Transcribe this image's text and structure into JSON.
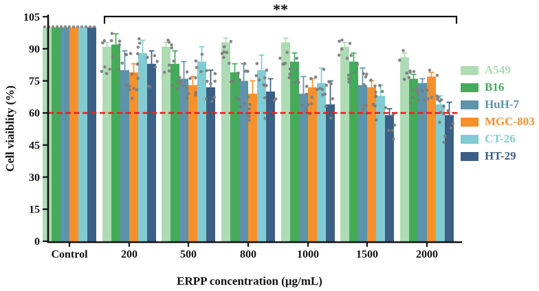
{
  "figure": {
    "background": "#ffffff",
    "axis_color": "#111111"
  },
  "chart_data": {
    "type": "bar",
    "title": "",
    "ylabel": "Cell viaiblity (%)",
    "xlabel": "ERPP concentration (μg/mL)",
    "ylim": [
      0,
      105
    ],
    "y_ticks": [
      0,
      15,
      30,
      45,
      60,
      75,
      90,
      105
    ],
    "categories": [
      "Control",
      "200",
      "500",
      "800",
      "1000",
      "1500",
      "2000"
    ],
    "grid": false,
    "legend_position": "right",
    "scatter_color": "#7d7d7d",
    "series": [
      {
        "name": "A549",
        "color": "#aedbb3",
        "values": [
          100,
          91,
          91,
          93,
          93,
          91,
          86
        ],
        "errors_up": [
          0.5,
          2,
          2,
          2,
          2,
          2,
          2
        ]
      },
      {
        "name": "B16",
        "color": "#45ab5b",
        "values": [
          100,
          92,
          83,
          79,
          84,
          84,
          76
        ],
        "errors_up": [
          0.5,
          5,
          6,
          4,
          4,
          4,
          2
        ]
      },
      {
        "name": "HuH-7",
        "color": "#5e93aa",
        "values": [
          100,
          80,
          76,
          75,
          69,
          73,
          74
        ],
        "errors_up": [
          0.5,
          9,
          8,
          8,
          8,
          8,
          2
        ]
      },
      {
        "name": "MGC-803",
        "color": "#f6902d",
        "values": [
          100,
          79,
          73,
          69,
          72,
          72,
          77
        ],
        "errors_up": [
          0.5,
          4,
          4,
          6,
          4,
          3,
          2
        ]
      },
      {
        "name": "CT-26",
        "color": "#82cbd2",
        "values": [
          100,
          88,
          84,
          80,
          74,
          68,
          64
        ],
        "errors_up": [
          0.5,
          6,
          7,
          7,
          7,
          5,
          4
        ]
      },
      {
        "name": "HT-29",
        "color": "#3c5f86",
        "values": [
          100,
          83,
          72,
          70,
          64,
          59,
          59
        ],
        "errors_up": [
          0.5,
          6,
          8,
          6,
          11,
          3,
          6
        ]
      }
    ],
    "reference_line": {
      "value": 60,
      "color": "#ec2024",
      "style": "dashed"
    },
    "annotation": {
      "label": "**",
      "from_category": "200",
      "to_category": "2000"
    }
  }
}
